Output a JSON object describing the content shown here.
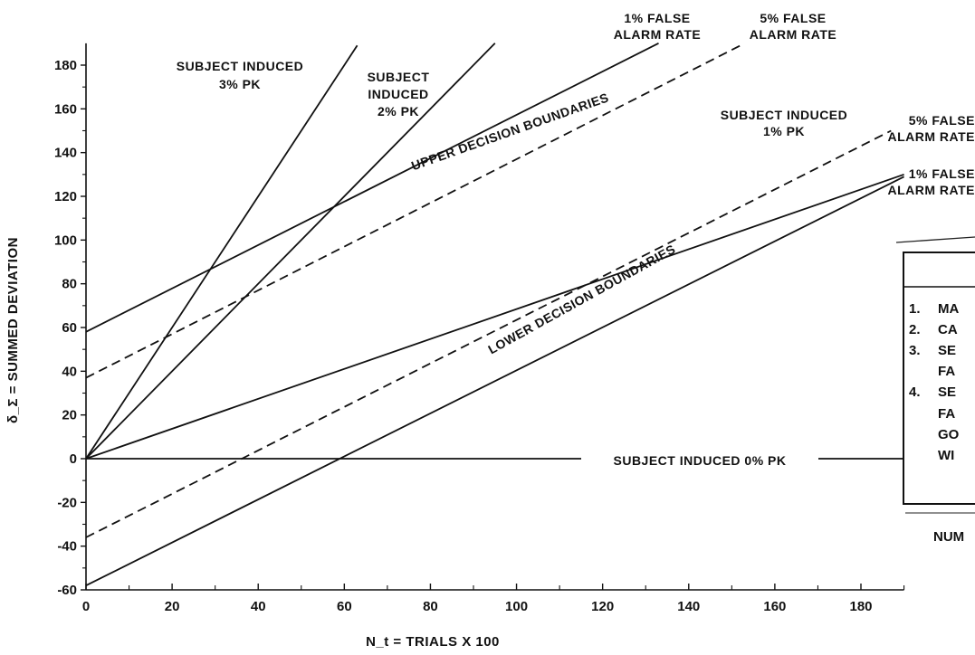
{
  "chart_data": {
    "type": "line",
    "xlabel": "N_t = TRIALS X 100",
    "ylabel": "δ_Σ = SUMMED DEVIATION",
    "xlim": [
      0,
      190
    ],
    "ylim": [
      -60,
      190
    ],
    "x_ticks": [
      0,
      20,
      40,
      60,
      80,
      100,
      120,
      140,
      160,
      180
    ],
    "y_ticks": [
      -60,
      -40,
      -20,
      0,
      20,
      40,
      60,
      80,
      100,
      120,
      140,
      160,
      180
    ],
    "grid": false,
    "series": [
      {
        "key": "pk3",
        "style": "solid",
        "x": [
          0,
          63
        ],
        "y": [
          0,
          189
        ]
      },
      {
        "key": "pk2",
        "style": "solid",
        "x": [
          0,
          95
        ],
        "y": [
          0,
          190
        ]
      },
      {
        "key": "pk1",
        "style": "solid",
        "x": [
          0,
          190
        ],
        "y": [
          0,
          130
        ]
      },
      {
        "key": "pk0",
        "style": "solid",
        "x": [
          0,
          190
        ],
        "y": [
          0,
          0
        ]
      },
      {
        "key": "upper_1",
        "style": "solid",
        "x": [
          0,
          133
        ],
        "y": [
          58,
          190
        ]
      },
      {
        "key": "upper_5",
        "style": "dashed",
        "x": [
          0,
          152
        ],
        "y": [
          37,
          189
        ]
      },
      {
        "key": "lower_5",
        "style": "dashed",
        "x": [
          0,
          187
        ],
        "y": [
          -36,
          150
        ]
      },
      {
        "key": "lower_1",
        "style": "solid",
        "x": [
          0,
          190
        ],
        "y": [
          -58,
          129
        ]
      }
    ],
    "annotations": [
      {
        "key": "pk3_label",
        "lines": [
          "SUBJECT INDUCED",
          "3% PK"
        ]
      },
      {
        "key": "pk2_label",
        "lines": [
          "SUBJECT",
          "INDUCED",
          "2% PK"
        ]
      },
      {
        "key": "pk1_label",
        "lines": [
          "SUBJECT  INDUCED",
          "1% PK"
        ]
      },
      {
        "key": "pk0_label",
        "lines": [
          "SUBJECT  INDUCED  0%  PK"
        ]
      },
      {
        "key": "upper_1_label",
        "lines": [
          "1%  FALSE",
          "ALARM  RATE"
        ]
      },
      {
        "key": "upper_5_label",
        "lines": [
          "5%  FALSE",
          "ALARM  RATE"
        ]
      },
      {
        "key": "lower_5_label",
        "lines": [
          "5%  FALSE",
          "ALARM  RATE"
        ]
      },
      {
        "key": "lower_1_label",
        "lines": [
          "1%  FALSE",
          "ALARM  RATE"
        ]
      },
      {
        "key": "upper_bounds",
        "lines": [
          "UPPER  DECISION  BOUNDARIES"
        ]
      },
      {
        "key": "lower_bounds",
        "lines": [
          "LOWER  DECISION  BOUNDARIES"
        ]
      }
    ]
  },
  "side_panel": {
    "items": [
      "1.",
      "MA",
      "2.",
      "CA",
      "3.",
      "SE",
      "FA",
      "4.",
      "SE",
      "FA",
      "GO",
      "WI"
    ],
    "footer": "NUM"
  }
}
